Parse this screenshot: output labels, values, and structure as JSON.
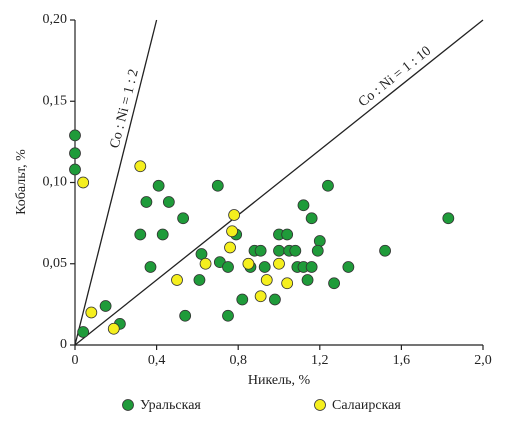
{
  "chart_data": {
    "type": "scatter",
    "x_label": "Никель, %",
    "y_label": "Кобальт, %",
    "xlim": [
      0,
      2.0
    ],
    "ylim": [
      0,
      0.2
    ],
    "xticks": [
      0,
      {
        "value": 0.4,
        "label": "0,4"
      },
      {
        "value": 0.8,
        "label": "0,8"
      },
      {
        "value": 1.2,
        "label": "1,2"
      },
      {
        "value": 1.6,
        "label": "1,6"
      },
      {
        "value": 2.0,
        "label": "2,0"
      }
    ],
    "yticks": [
      0,
      {
        "value": 0.05,
        "label": "0,05"
      },
      {
        "value": 0.1,
        "label": "0,10"
      },
      {
        "value": 0.15,
        "label": "0,15"
      },
      {
        "value": 0.2,
        "label": "0,20"
      }
    ],
    "grid": false,
    "legend": "bottom",
    "reference_lines": [
      {
        "label": "Co : Ni = 1 : 2",
        "x": [
          0,
          0.4
        ],
        "y": [
          0,
          0.2
        ]
      },
      {
        "label": "Co : Ni = 1 : 10",
        "x": [
          0,
          2.0
        ],
        "y": [
          0,
          0.2
        ]
      }
    ],
    "series": [
      {
        "name": "Уральская",
        "color": "#1f9b3a",
        "x": [
          0,
          0,
          0,
          0.04,
          0.15,
          0.22,
          0.32,
          0.35,
          0.37,
          0.41,
          0.43,
          0.46,
          0.53,
          0.54,
          0.61,
          0.62,
          0.7,
          0.71,
          0.75,
          0.75,
          0.79,
          0.82,
          0.86,
          0.88,
          0.91,
          0.93,
          0.98,
          1.0,
          1.0,
          1.04,
          1.05,
          1.08,
          1.09,
          1.12,
          1.12,
          1.14,
          1.16,
          1.16,
          1.2,
          1.19,
          1.24,
          1.27,
          1.34,
          1.52,
          1.83
        ],
        "y": [
          0.129,
          0.118,
          0.108,
          0.008,
          0.024,
          0.013,
          0.068,
          0.088,
          0.048,
          0.098,
          0.068,
          0.088,
          0.078,
          0.018,
          0.04,
          0.056,
          0.098,
          0.051,
          0.048,
          0.018,
          0.068,
          0.028,
          0.048,
          0.058,
          0.058,
          0.048,
          0.028,
          0.058,
          0.068,
          0.068,
          0.058,
          0.058,
          0.048,
          0.048,
          0.086,
          0.04,
          0.078,
          0.048,
          0.064,
          0.058,
          0.098,
          0.038,
          0.048,
          0.058,
          0.078
        ]
      },
      {
        "name": "Салаирская",
        "color": "#f5ef1e",
        "x": [
          0.04,
          0.08,
          0.19,
          0.32,
          0.5,
          0.64,
          0.76,
          0.77,
          0.78,
          0.85,
          0.91,
          0.94,
          1.0,
          1.04
        ],
        "y": [
          0.1,
          0.02,
          0.01,
          0.11,
          0.04,
          0.05,
          0.06,
          0.07,
          0.08,
          0.05,
          0.03,
          0.04,
          0.05,
          0.038
        ]
      }
    ]
  }
}
